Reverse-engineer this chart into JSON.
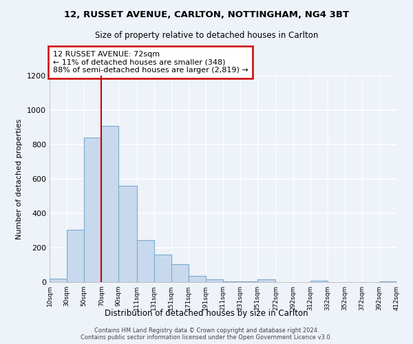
{
  "title1": "12, RUSSET AVENUE, CARLTON, NOTTINGHAM, NG4 3BT",
  "title2": "Size of property relative to detached houses in Carlton",
  "xlabel": "Distribution of detached houses by size in Carlton",
  "ylabel": "Number of detached properties",
  "bin_labels": [
    "10sqm",
    "30sqm",
    "50sqm",
    "70sqm",
    "90sqm",
    "111sqm",
    "131sqm",
    "151sqm",
    "171sqm",
    "191sqm",
    "211sqm",
    "231sqm",
    "251sqm",
    "272sqm",
    "292sqm",
    "312sqm",
    "332sqm",
    "352sqm",
    "372sqm",
    "392sqm",
    "412sqm"
  ],
  "bar_values": [
    20,
    305,
    840,
    910,
    560,
    245,
    160,
    103,
    38,
    15,
    5,
    5,
    15,
    0,
    0,
    10,
    0,
    0,
    0,
    5
  ],
  "bar_color": "#c9d9ed",
  "bar_edge_color": "#7aabcf",
  "property_line_x": 70,
  "property_line_color": "#cc0000",
  "annotation_text": "12 RUSSET AVENUE: 72sqm\n← 11% of detached houses are smaller (348)\n88% of semi-detached houses are larger (2,819) →",
  "annotation_box_color": "#ffffff",
  "annotation_box_edge": "#cc0000",
  "ylim": [
    0,
    1200
  ],
  "yticks": [
    0,
    200,
    400,
    600,
    800,
    1000,
    1200
  ],
  "footer1": "Contains HM Land Registry data © Crown copyright and database right 2024.",
  "footer2": "Contains public sector information licensed under the Open Government Licence v3.0.",
  "bg_color": "#eef2f9"
}
